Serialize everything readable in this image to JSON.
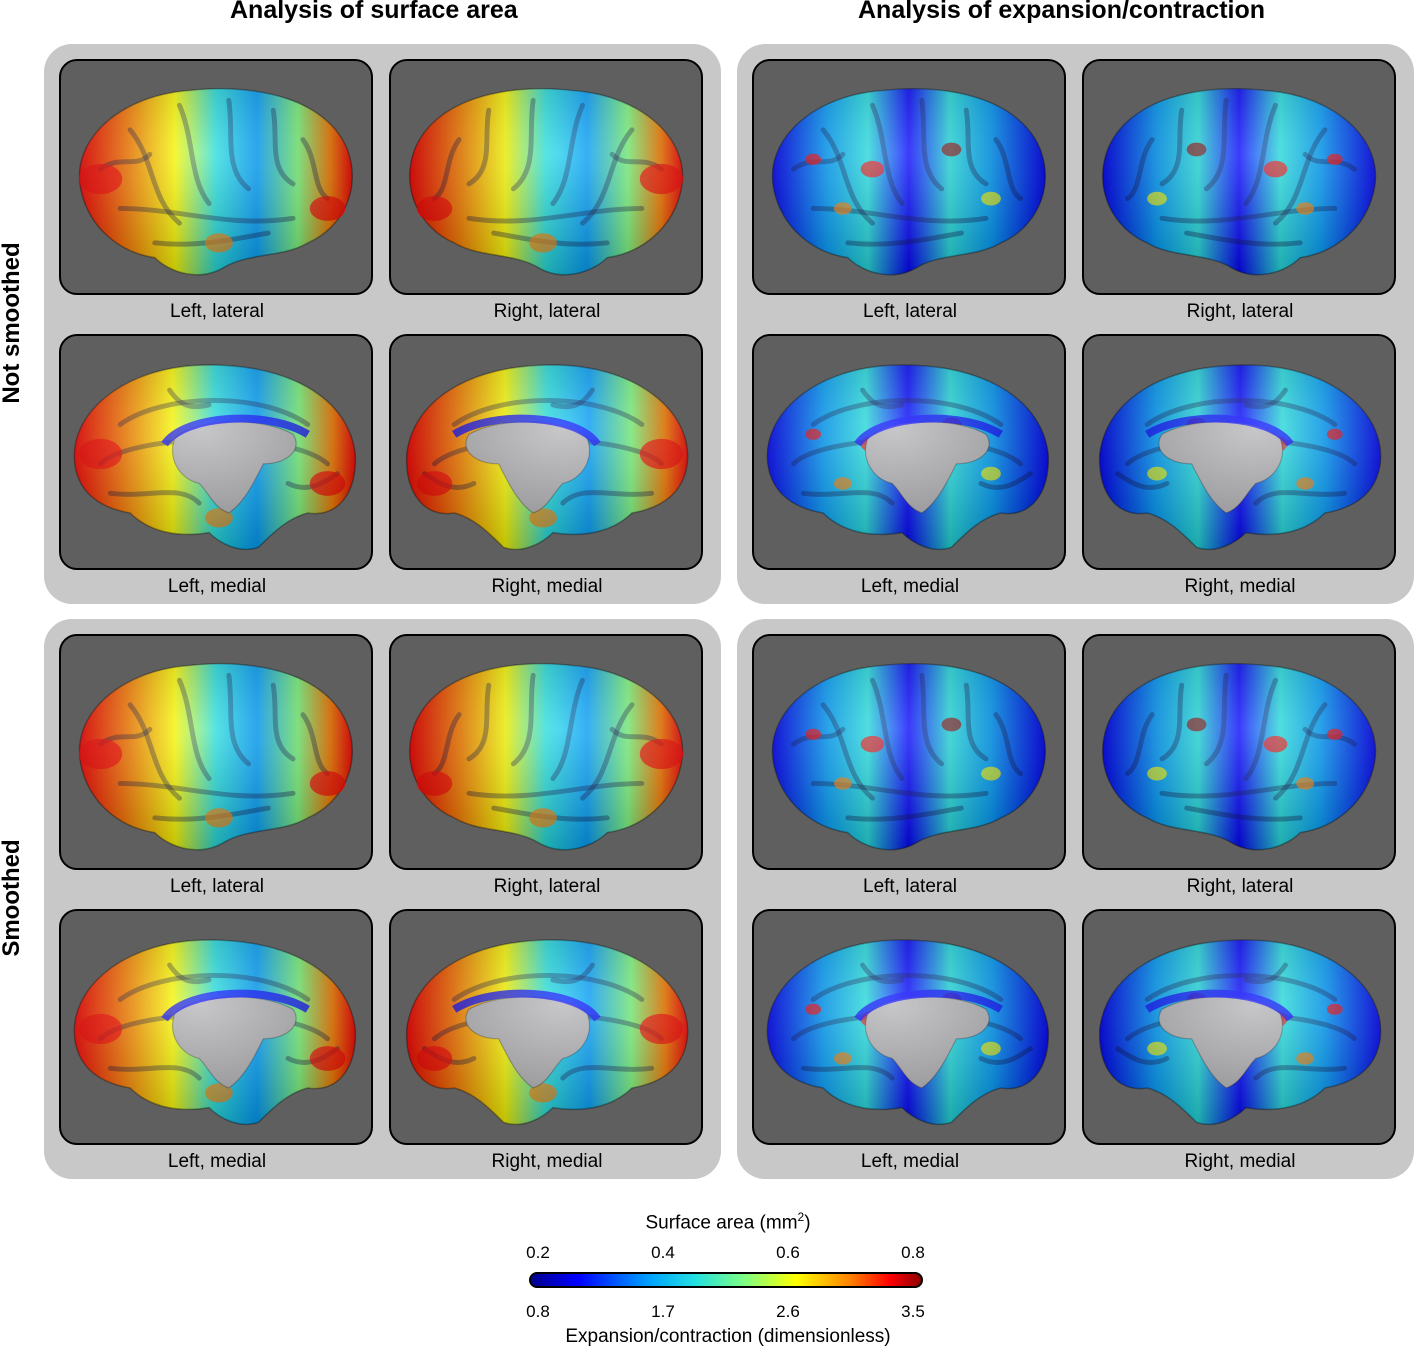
{
  "column_titles": [
    "Analysis of surface area",
    "Analysis of expansion/contraction"
  ],
  "row_titles": [
    "Not smoothed",
    "Smoothed"
  ],
  "panel_labels": {
    "left_lateral": "Left, lateral",
    "right_lateral": "Right, lateral",
    "left_medial": "Left, medial",
    "right_medial": "Right, medial"
  },
  "colorbar": {
    "top_title": "Surface area (mm",
    "top_title_sup": "2",
    "top_title_end": ")",
    "top_ticks": [
      "0.2",
      "0.4",
      "0.6",
      "0.8"
    ],
    "bottom_ticks": [
      "0.8",
      "1.7",
      "2.6",
      "3.5"
    ],
    "bottom_title": "Expansion/contraction (dimensionless)",
    "colormap": [
      "#00008f",
      "#0000ff",
      "#00a0ff",
      "#22e0e0",
      "#80ff80",
      "#ffff00",
      "#ff8000",
      "#ff0000",
      "#8f0000"
    ]
  },
  "colors": {
    "group_background": "#c8c8c8",
    "panel_background": "#5f5f5f",
    "thalamus_gray": "#b4b4b8"
  }
}
